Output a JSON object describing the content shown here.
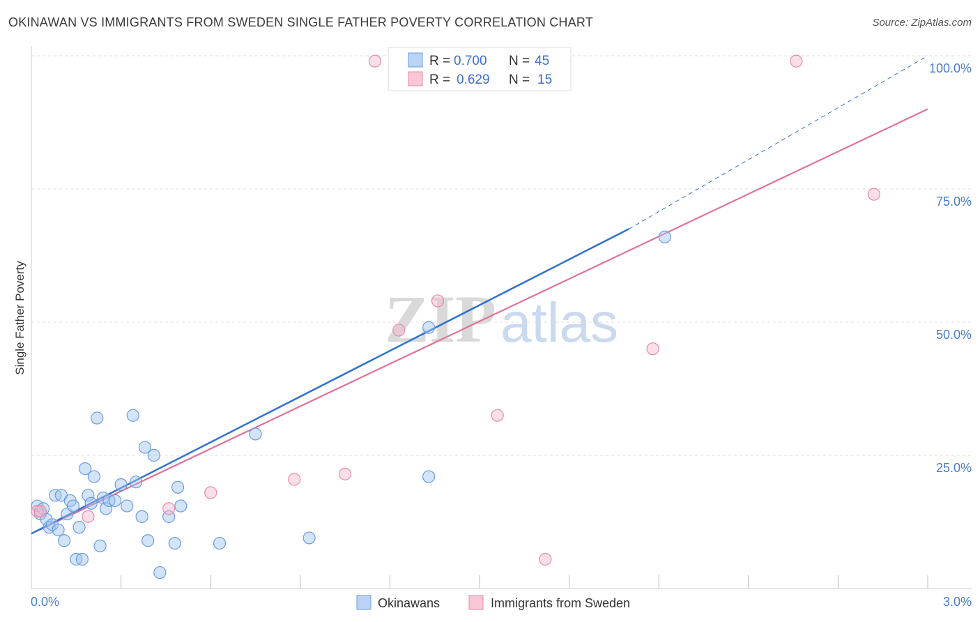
{
  "header": {
    "title": "OKINAWAN VS IMMIGRANTS FROM SWEDEN SINGLE FATHER POVERTY CORRELATION CHART",
    "source": "Source: ZipAtlas.com"
  },
  "watermark": {
    "zip": "ZIP",
    "atlas": "atlas"
  },
  "legend": {
    "series": [
      {
        "r_label": "R =",
        "r_value": "0.700",
        "n_label": "N =",
        "n_value": "45"
      },
      {
        "r_label": "R =",
        "r_value": "0.629",
        "n_label": "N =",
        "n_value": "15"
      }
    ]
  },
  "bottom_legend": {
    "items": [
      "Okinawans",
      "Immigrants from Sweden"
    ]
  },
  "chart_data": {
    "type": "scatter",
    "title": "OKINAWAN VS IMMIGRANTS FROM SWEDEN SINGLE FATHER POVERTY CORRELATION CHART",
    "xlabel": "",
    "ylabel": "Single Father Poverty",
    "xlim": [
      0,
      3.0
    ],
    "ylim": [
      0,
      100
    ],
    "x_tick_labels": [
      "0.0%",
      "3.0%"
    ],
    "y_ticks": [
      25,
      50,
      75,
      100
    ],
    "y_tick_labels": [
      "25.0%",
      "50.0%",
      "75.0%",
      "100.0%"
    ],
    "colors": {
      "okinawans": "#6a9ce0",
      "sweden": "#e88aa8",
      "blue_line": "#2f72d0",
      "pink_line": "#e0709a"
    },
    "series": [
      {
        "name": "Okinawans",
        "r": 0.7,
        "n": 45,
        "points": [
          [
            0.02,
            15.5
          ],
          [
            0.03,
            14.0
          ],
          [
            0.04,
            15.0
          ],
          [
            0.05,
            13.0
          ],
          [
            0.06,
            11.5
          ],
          [
            0.07,
            12.0
          ],
          [
            0.08,
            17.5
          ],
          [
            0.09,
            11.0
          ],
          [
            0.1,
            17.5
          ],
          [
            0.11,
            9.0
          ],
          [
            0.12,
            14.0
          ],
          [
            0.13,
            16.5
          ],
          [
            0.14,
            15.5
          ],
          [
            0.15,
            5.5
          ],
          [
            0.16,
            11.5
          ],
          [
            0.17,
            5.5
          ],
          [
            0.18,
            22.5
          ],
          [
            0.19,
            17.5
          ],
          [
            0.2,
            16.0
          ],
          [
            0.21,
            21.0
          ],
          [
            0.22,
            32.0
          ],
          [
            0.23,
            8.0
          ],
          [
            0.24,
            17.0
          ],
          [
            0.25,
            15.0
          ],
          [
            0.26,
            16.5
          ],
          [
            0.28,
            16.5
          ],
          [
            0.3,
            19.5
          ],
          [
            0.32,
            15.5
          ],
          [
            0.34,
            32.5
          ],
          [
            0.35,
            20.0
          ],
          [
            0.37,
            13.5
          ],
          [
            0.38,
            26.5
          ],
          [
            0.39,
            9.0
          ],
          [
            0.41,
            25.0
          ],
          [
            0.43,
            3.0
          ],
          [
            0.46,
            13.5
          ],
          [
            0.48,
            8.5
          ],
          [
            0.49,
            19.0
          ],
          [
            0.5,
            15.5
          ],
          [
            0.63,
            8.5
          ],
          [
            0.75,
            29.0
          ],
          [
            0.93,
            9.5
          ],
          [
            1.33,
            21.0
          ],
          [
            1.33,
            49.0
          ],
          [
            2.12,
            66.0
          ]
        ]
      },
      {
        "name": "Immigrants from Sweden",
        "r": 0.629,
        "n": 15,
        "points": [
          [
            0.02,
            14.5
          ],
          [
            0.03,
            14.5
          ],
          [
            0.19,
            13.5
          ],
          [
            0.46,
            15.0
          ],
          [
            0.6,
            18.0
          ],
          [
            0.88,
            20.5
          ],
          [
            1.05,
            21.5
          ],
          [
            1.15,
            99.0
          ],
          [
            1.23,
            48.5
          ],
          [
            1.36,
            54.0
          ],
          [
            1.56,
            32.5
          ],
          [
            1.72,
            5.5
          ],
          [
            2.08,
            45.0
          ],
          [
            2.56,
            99.0
          ],
          [
            2.82,
            74.0
          ]
        ]
      }
    ],
    "trendlines": [
      {
        "series": "Okinawans",
        "x0": 0.0,
        "y0": 10.3,
        "x1": 2.0,
        "y1": 67.5,
        "dash_to_x": 3.0,
        "dash_to_y": 100.0
      },
      {
        "series": "Immigrants from Sweden",
        "x0": 0.0,
        "y0": 10.3,
        "x1": 3.0,
        "y1": 90.0
      }
    ]
  }
}
